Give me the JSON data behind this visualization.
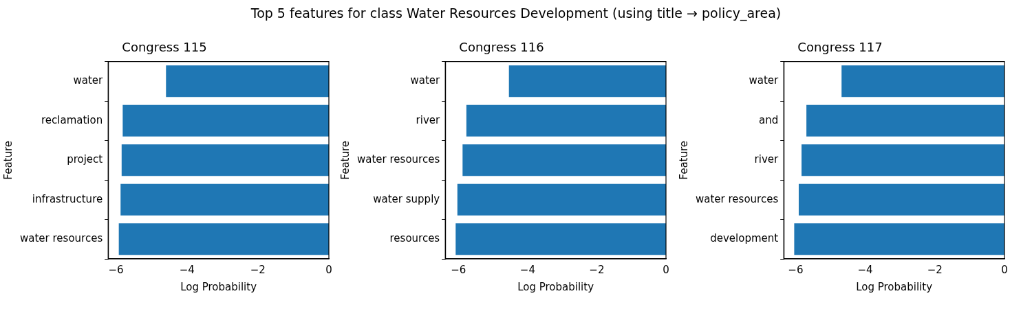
{
  "chart_data": [
    {
      "type": "bar",
      "orientation": "horizontal",
      "title": "Top 5 features for class Water Resources Development (using title → policy_area)",
      "subtitle": "Congress 115",
      "xlabel": "Log Probability",
      "ylabel": "Feature",
      "categories": [
        "water",
        "reclamation",
        "project",
        "infrastructure",
        "water resources"
      ],
      "values": [
        -4.59,
        -5.81,
        -5.84,
        -5.87,
        -5.92
      ],
      "color": "#1f77b4",
      "xlim": [
        -6.22,
        0
      ],
      "xticks": [
        {
          "value": -6,
          "label": "−6"
        },
        {
          "value": -4,
          "label": "−4"
        },
        {
          "value": -2,
          "label": "−2"
        },
        {
          "value": 0,
          "label": "0"
        }
      ]
    },
    {
      "type": "bar",
      "orientation": "horizontal",
      "subtitle": "Congress 116",
      "xlabel": "Log Probability",
      "ylabel": "Feature",
      "categories": [
        "water",
        "river",
        "water resources",
        "water supply",
        "resources"
      ],
      "values": [
        -4.54,
        -5.77,
        -5.88,
        -6.03,
        -6.08
      ],
      "color": "#1f77b4",
      "xlim": [
        -6.38,
        0
      ],
      "xticks": [
        {
          "value": -6,
          "label": "−6"
        },
        {
          "value": -4,
          "label": "−4"
        },
        {
          "value": -2,
          "label": "−2"
        },
        {
          "value": 0,
          "label": "0"
        }
      ]
    },
    {
      "type": "bar",
      "orientation": "horizontal",
      "subtitle": "Congress 117",
      "xlabel": "Log Probability",
      "ylabel": "Feature",
      "categories": [
        "water",
        "and",
        "river",
        "water resources",
        "development"
      ],
      "values": [
        -4.68,
        -5.69,
        -5.83,
        -5.91,
        -6.04
      ],
      "color": "#1f77b4",
      "xlim": [
        -6.34,
        0
      ],
      "xticks": [
        {
          "value": -6,
          "label": "−6"
        },
        {
          "value": -4,
          "label": "−4"
        },
        {
          "value": -2,
          "label": "−2"
        },
        {
          "value": 0,
          "label": "0"
        }
      ]
    }
  ]
}
